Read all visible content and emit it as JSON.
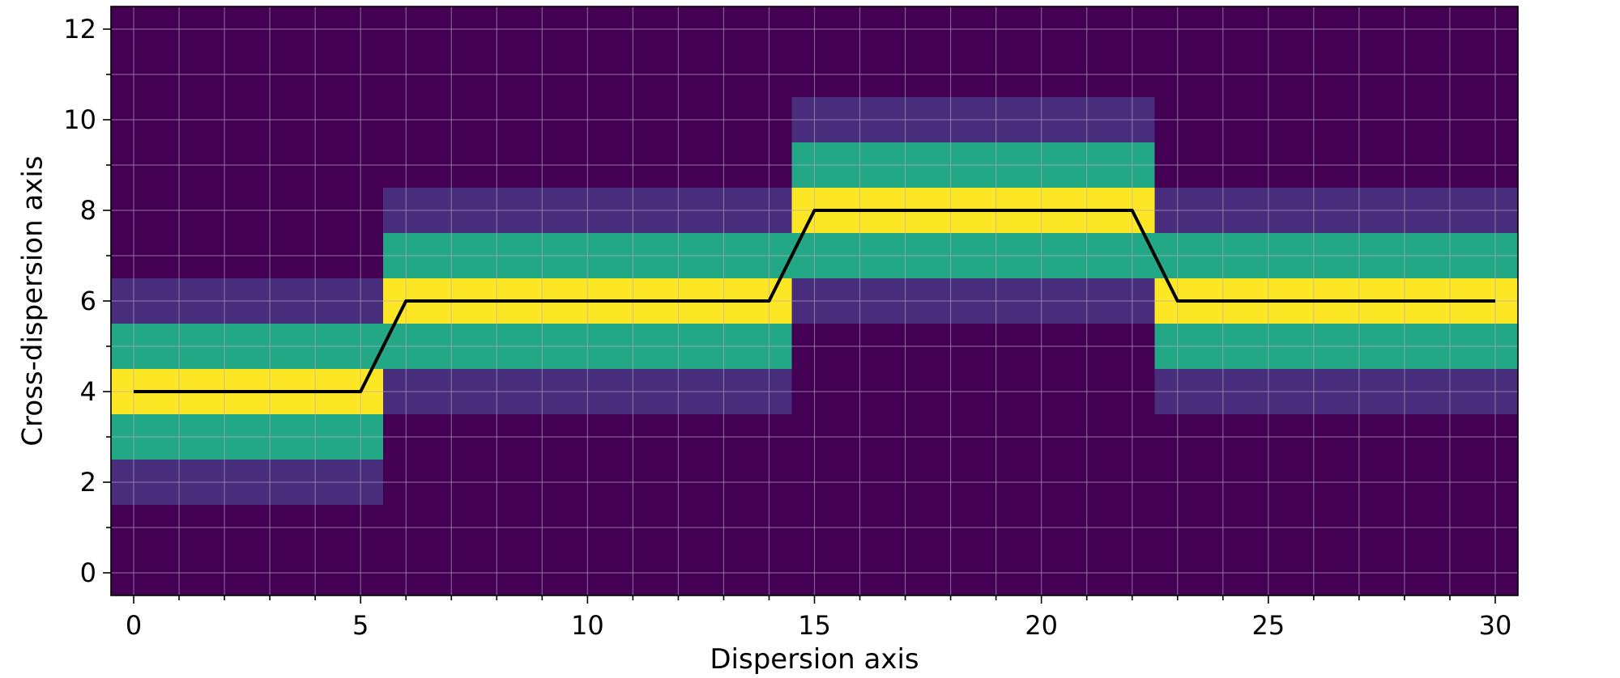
{
  "chart_data": {
    "type": "heatmap",
    "title": "",
    "xlabel": "Dispersion axis",
    "ylabel": "Cross-dispersion axis",
    "xlim": [
      -0.5,
      30.5
    ],
    "ylim": [
      -0.5,
      12.5
    ],
    "xticks": [
      0,
      5,
      10,
      15,
      20,
      25,
      30
    ],
    "xtick_labels": [
      "0",
      "5",
      "10",
      "15",
      "20",
      "25",
      "30"
    ],
    "yticks": [
      0,
      2,
      4,
      6,
      8,
      10,
      12
    ],
    "ytick_labels": [
      "0",
      "2",
      "4",
      "6",
      "8",
      "10",
      "12"
    ],
    "grid": true,
    "colormap": "viridis",
    "colors": {
      "background": "#440154",
      "level_1": "#472d7b",
      "level_2": "#22a884",
      "level_3": "#fde725",
      "trace_line": "#000000",
      "grid": "#b8a7c4"
    },
    "segments": [
      {
        "x_start": -0.5,
        "x_end": 5.5,
        "center": 4
      },
      {
        "x_start": 5.5,
        "x_end": 14.5,
        "center": 6
      },
      {
        "x_start": 14.5,
        "x_end": 22.5,
        "center": 8
      },
      {
        "x_start": 22.5,
        "x_end": 30.5,
        "center": 6
      }
    ],
    "band_profile": [
      {
        "offset": -2,
        "level": 1
      },
      {
        "offset": -1,
        "level": 2
      },
      {
        "offset": 0,
        "level": 3
      },
      {
        "offset": 1,
        "level": 2
      },
      {
        "offset": 2,
        "level": 1
      }
    ],
    "trace": {
      "x": [
        0,
        1,
        2,
        3,
        4,
        5,
        6,
        7,
        8,
        9,
        10,
        11,
        12,
        13,
        14,
        15,
        16,
        17,
        18,
        19,
        20,
        21,
        22,
        23,
        24,
        25,
        26,
        27,
        28,
        29,
        30
      ],
      "y": [
        4,
        4,
        4,
        4,
        4,
        4,
        6,
        6,
        6,
        6,
        6,
        6,
        6,
        6,
        6,
        8,
        8,
        8,
        8,
        8,
        8,
        8,
        8,
        6,
        6,
        6,
        6,
        6,
        6,
        6,
        6
      ]
    }
  }
}
